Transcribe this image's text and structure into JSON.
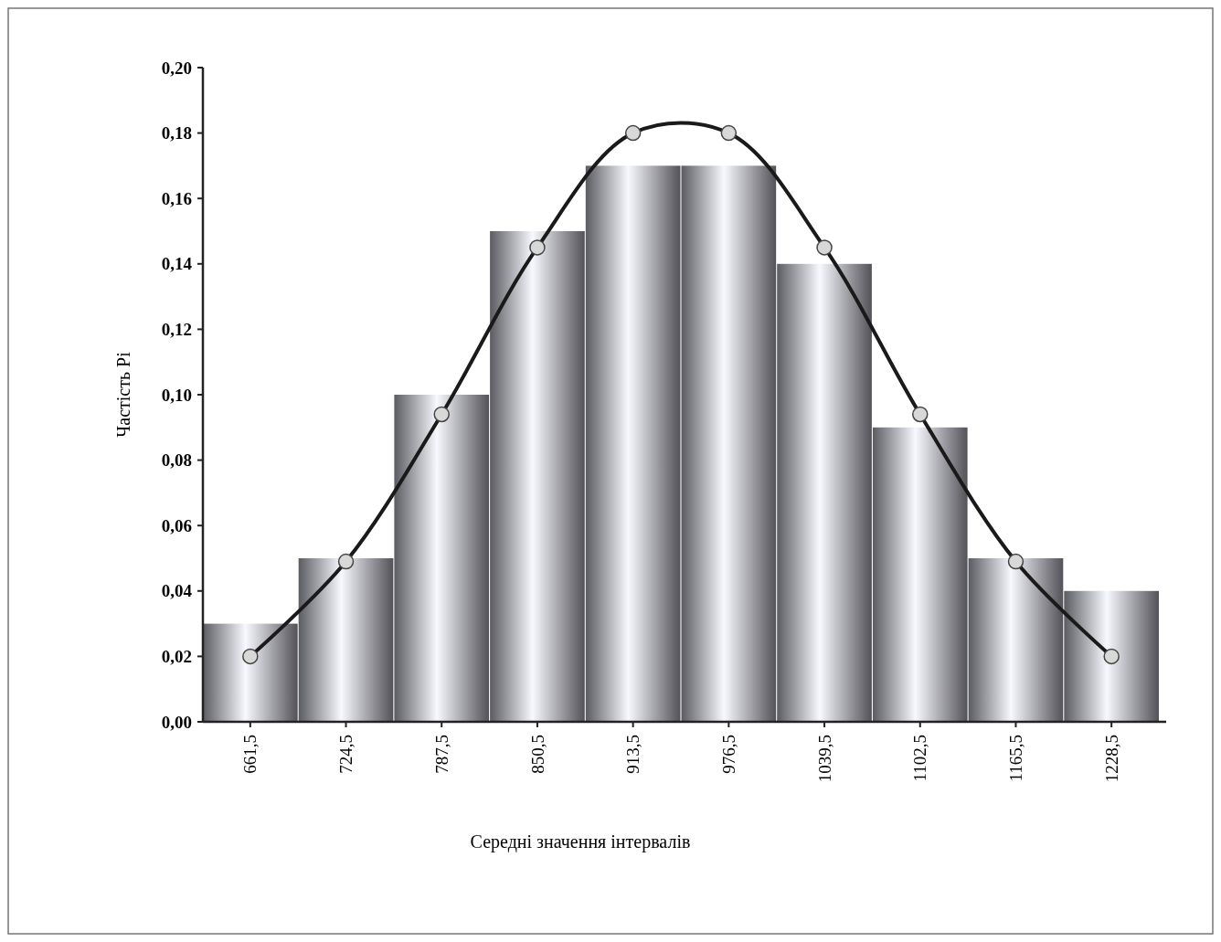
{
  "chart_data": {
    "type": "bar",
    "xlabel": "Середні значення інтервалів",
    "ylabel": "Частість Pi",
    "categories": [
      "661,5",
      "724,5",
      "787,5",
      "850,5",
      "913,5",
      "976,5",
      "1039,5",
      "1102,5",
      "1165,5",
      "1228,5"
    ],
    "series": [
      {
        "color": "#8c8c96",
        "values": [
          0.03,
          0.05,
          0.1,
          0.15,
          0.17,
          0.17,
          0.14,
          0.09,
          0.05,
          0.04
        ]
      },
      {
        "type": "line",
        "color": "#1a1a1a",
        "marker": "circle",
        "line_style": "solid",
        "values": [
          0.02,
          0.049,
          0.094,
          0.145,
          0.18,
          0.18,
          0.145,
          0.094,
          0.049,
          0.02
        ]
      }
    ],
    "ylim": [
      0,
      0.2
    ],
    "yticks": [
      {
        "value": 0,
        "label": "0,00"
      },
      {
        "value": 0.02,
        "label": "0,02"
      },
      {
        "value": 0.04,
        "label": "0,04"
      },
      {
        "value": 0.06,
        "label": "0,06"
      },
      {
        "value": 0.08,
        "label": "0,08"
      },
      {
        "value": 0.1,
        "label": "0,10"
      },
      {
        "value": 0.12,
        "label": "0,12"
      },
      {
        "value": 0.14,
        "label": "0,14"
      },
      {
        "value": 0.16,
        "label": "0,16"
      },
      {
        "value": 0.18,
        "label": "0,18"
      },
      {
        "value": 0.2,
        "label": "0,20"
      }
    ],
    "grid": false
  }
}
